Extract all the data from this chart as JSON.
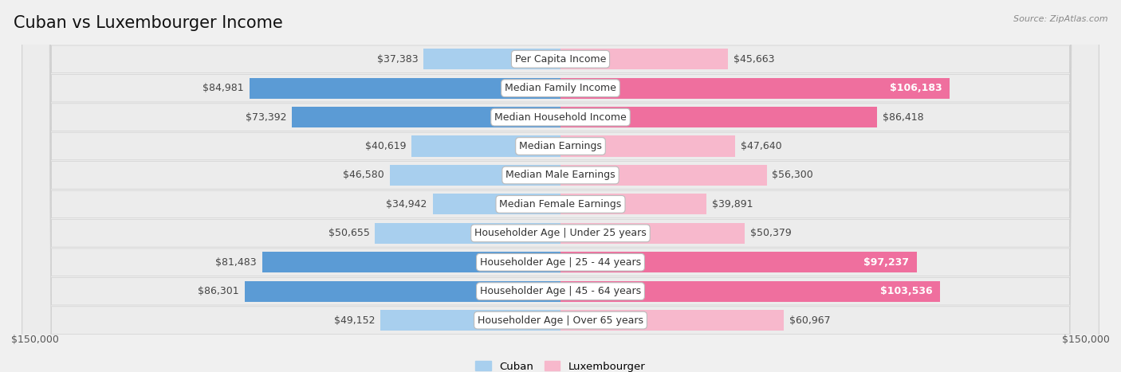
{
  "title": "Cuban vs Luxembourger Income",
  "source": "Source: ZipAtlas.com",
  "categories": [
    "Per Capita Income",
    "Median Family Income",
    "Median Household Income",
    "Median Earnings",
    "Median Male Earnings",
    "Median Female Earnings",
    "Householder Age | Under 25 years",
    "Householder Age | 25 - 44 years",
    "Householder Age | 45 - 64 years",
    "Householder Age | Over 65 years"
  ],
  "cuban_values": [
    37383,
    84981,
    73392,
    40619,
    46580,
    34942,
    50655,
    81483,
    86301,
    49152
  ],
  "luxembourger_values": [
    45663,
    106183,
    86418,
    47640,
    56300,
    39891,
    50379,
    97237,
    103536,
    60967
  ],
  "cuban_color_light": "#A8CFEE",
  "cuban_color_dark": "#5B9BD5",
  "luxembourger_color_light": "#F7B8CC",
  "luxembourger_color_dark": "#EF6F9E",
  "lux_inside_threshold": 95000,
  "max_value": 150000,
  "x_axis_label_left": "$150,000",
  "x_axis_label_right": "$150,000",
  "legend_cuban": "Cuban",
  "legend_luxembourger": "Luxembourger",
  "background_color": "#f8f8f8",
  "row_bg_even": "#f0f0f0",
  "row_bg_odd": "#e8e8e8",
  "row_bg_color": "#eeeeee",
  "title_fontsize": 15,
  "label_fontsize": 9,
  "value_fontsize": 9,
  "bar_height": 0.72
}
